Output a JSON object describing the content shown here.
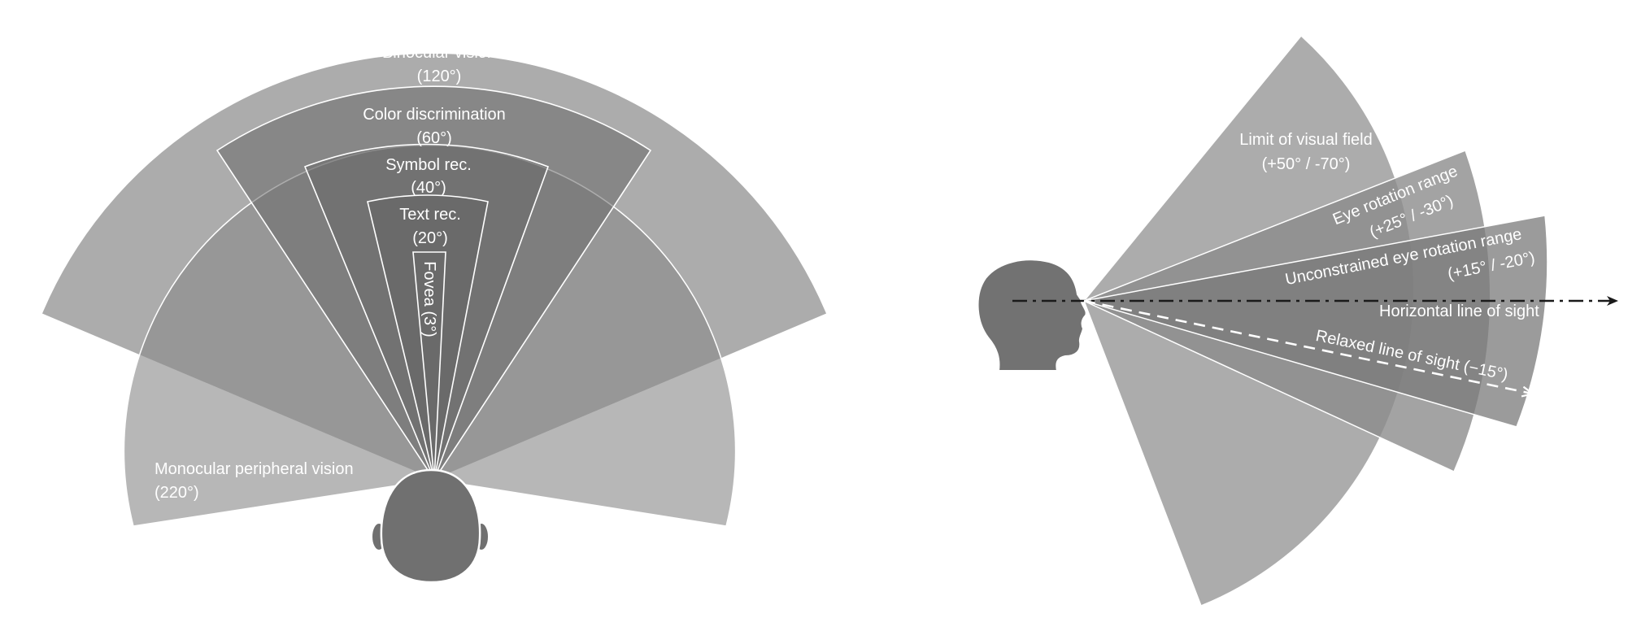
{
  "left_panel": {
    "binocular": {
      "title": "Binocular vision",
      "angle": "(120°)"
    },
    "color": {
      "title": "Color discrimination",
      "angle": "(60°)"
    },
    "symbol": {
      "title": "Symbol rec.",
      "angle": "(40°)"
    },
    "text": {
      "title": "Text rec.",
      "angle": "(20°)"
    },
    "fovea": {
      "label": "Fovea (3°)"
    },
    "monocular": {
      "title": "Monocular peripheral vision",
      "angle": "(220°)"
    }
  },
  "right_panel": {
    "limit": {
      "title": "Limit of visual field",
      "angle": "(+50° / -70°)"
    },
    "eye_rotation": {
      "title": "Eye rotation range",
      "angle": "(+25° / -30°)"
    },
    "unconstrained": {
      "title": "Unconstrained eye rotation range",
      "angle": "(+15° / -20°)"
    },
    "horizontal": {
      "label": "Horizontal line of sight"
    },
    "relaxed": {
      "label": "Relaxed line of sight (−15°)"
    }
  },
  "colors": {
    "light_fan": "#a9a9a9",
    "dark_fan": "#6f6f6f",
    "head": "#747474",
    "line": "#1a1a1a"
  }
}
